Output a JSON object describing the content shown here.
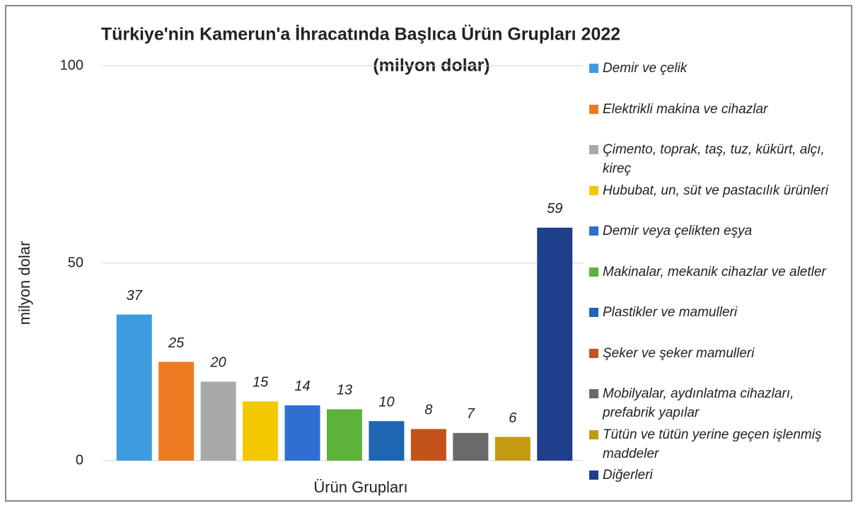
{
  "chart_data": {
    "type": "bar",
    "title": "Türkiye'nin Kamerun'a İhracatında Başlıca Ürün Grupları 2022",
    "subtitle": "(milyon dolar)",
    "x_label": "Ürün Grupları",
    "y_label": "milyon dolar",
    "categories": [
      "Demir ve çelik",
      "Elektrikli makina ve cihazlar",
      "Çimento, toprak, taş, tuz, kükürt, alçı, kireç",
      "Hububat, un, süt ve pastacılık ürünleri",
      "Demir veya çelikten eşya",
      "Makinalar, mekanik cihazlar ve aletler",
      "Plastikler ve mamulleri",
      "Şeker ve şeker mamulleri",
      "Mobilyalar, aydınlatma cihazları, prefabrik yapılar",
      "Tütün ve tütün yerine geçen işlenmiş maddeler",
      "Diğerleri"
    ],
    "values": [
      37,
      25,
      20,
      15,
      14,
      13,
      10,
      8,
      7,
      6,
      59
    ],
    "colors": [
      "#3d9be0",
      "#ee7a22",
      "#a9a9a9",
      "#f3c800",
      "#2f6fd2",
      "#5db33a",
      "#1f66b2",
      "#c4521b",
      "#6a6a6a",
      "#c39b12",
      "#1f3e8c"
    ],
    "ylim": [
      0,
      100
    ],
    "yticks": [
      0,
      50,
      100
    ],
    "grid": true,
    "legend": "right"
  }
}
